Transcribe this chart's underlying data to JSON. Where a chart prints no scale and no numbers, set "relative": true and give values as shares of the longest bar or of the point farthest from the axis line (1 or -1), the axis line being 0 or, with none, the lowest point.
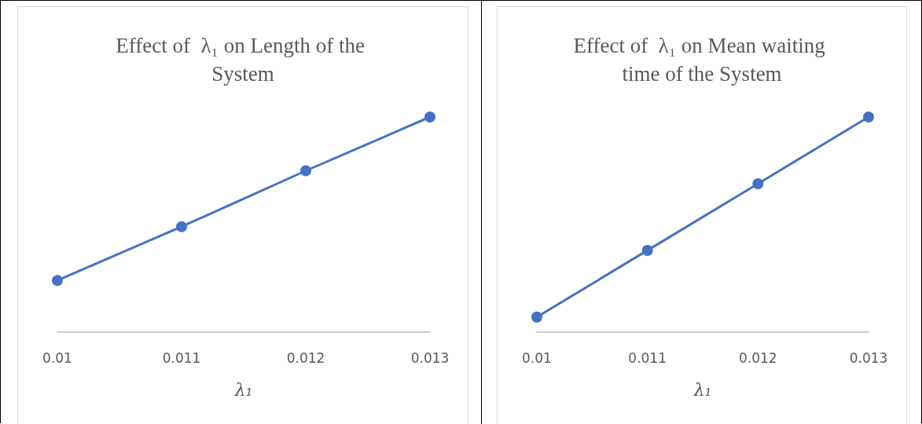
{
  "chart_data": [
    {
      "type": "line",
      "title": "Effect of  λ₁ on Length of the System",
      "xlabel": "λ₁",
      "categories": [
        "0.01",
        "0.011",
        "0.012",
        "0.013"
      ],
      "relative": true,
      "marker": "circle",
      "grid": false,
      "series": [
        {
          "color": "#4472c4",
          "values": [
            0.24,
            0.49,
            0.75,
            1
          ]
        }
      ]
    },
    {
      "type": "line",
      "title": "Effect of  λ₁ on Mean waiting time of the System",
      "xlabel": "λ₁",
      "categories": [
        "0.01",
        "0.011",
        "0.012",
        "0.013"
      ],
      "relative": true,
      "marker": "circle",
      "grid": false,
      "series": [
        {
          "color": "#4472c4",
          "values": [
            0.07,
            0.38,
            0.69,
            1
          ]
        }
      ]
    }
  ]
}
